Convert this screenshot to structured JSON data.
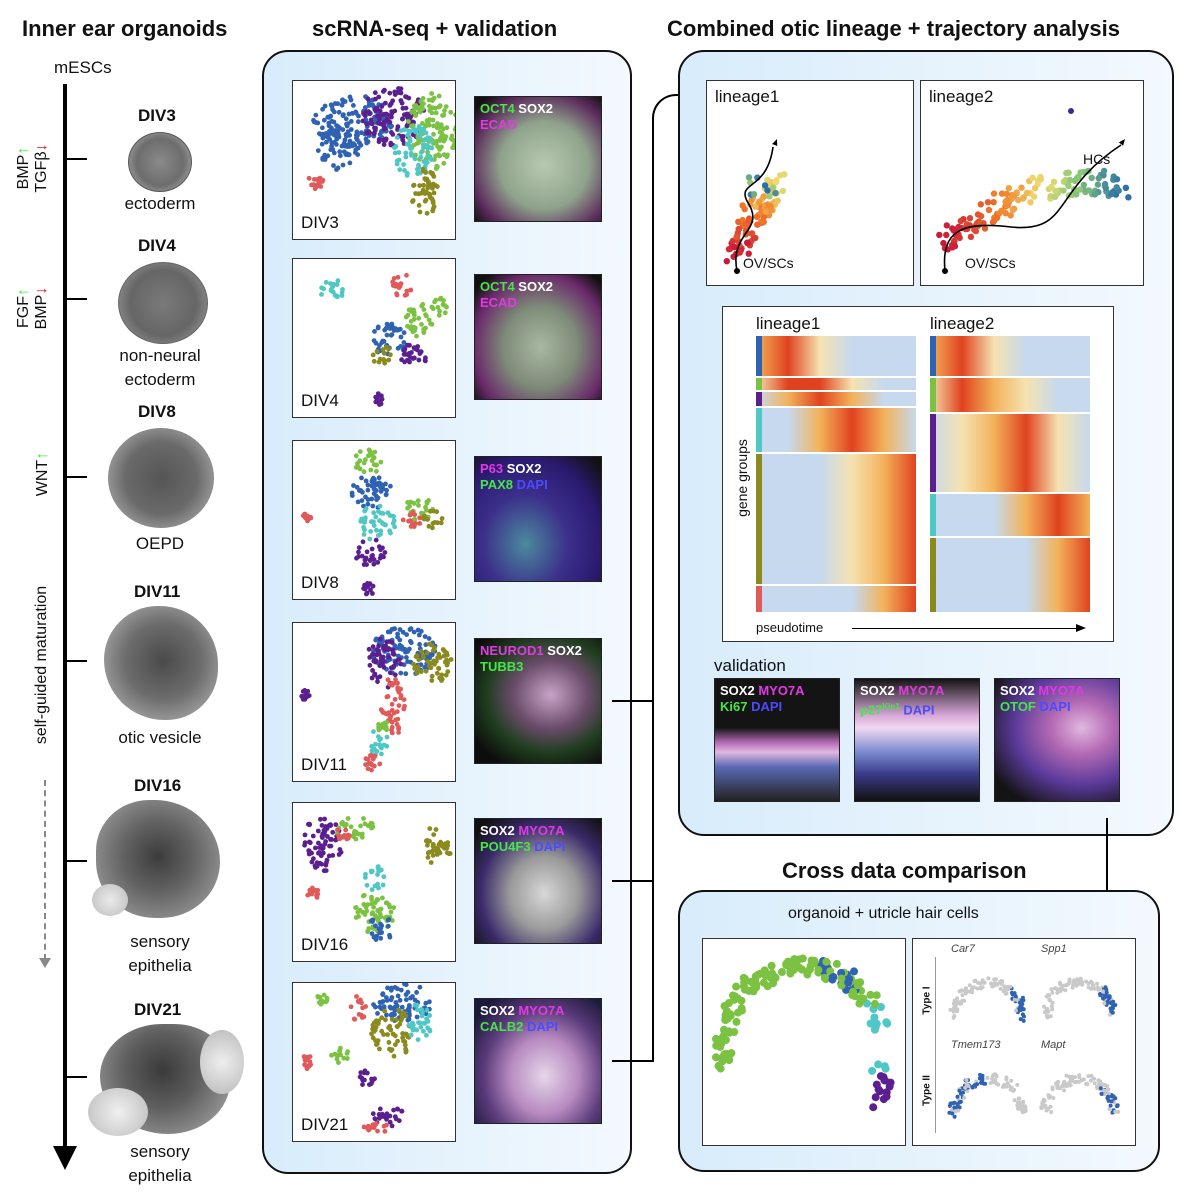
{
  "titles": {
    "col1": "Inner ear organoids",
    "col2": "scRNA-seq + validation",
    "col3": "Combined otic lineage + trajectory analysis",
    "cross": "Cross data comparison"
  },
  "timeline": {
    "start": "mESCs",
    "factors1_a": "BMP",
    "factors1_b": "TGFβ",
    "factors2_a": "FGF",
    "factors2_b": "BMP",
    "factors3": "WNT",
    "maturation": "self-guided maturation",
    "up": "↑",
    "down": "↓"
  },
  "stages": [
    {
      "div": "DIV3",
      "label1": "ectoderm",
      "label2": ""
    },
    {
      "div": "DIV4",
      "label1": "non-neural",
      "label2": "ectoderm"
    },
    {
      "div": "DIV8",
      "label1": "OEPD",
      "label2": ""
    },
    {
      "div": "DIV11",
      "label1": "otic vesicle",
      "label2": ""
    },
    {
      "div": "DIV16",
      "label1": "sensory",
      "label2": "epithelia"
    },
    {
      "div": "DIV21",
      "label1": "sensory",
      "label2": "epithelia"
    }
  ],
  "umaps": [
    "DIV3",
    "DIV4",
    "DIV8",
    "DIV11",
    "DIV16",
    "DIV21"
  ],
  "stains": [
    {
      "l1": [
        [
          "OCT4",
          "g"
        ],
        [
          "SOX2",
          "w"
        ]
      ],
      "l2": [
        [
          "ECAD",
          "m"
        ]
      ]
    },
    {
      "l1": [
        [
          "OCT4",
          "g"
        ],
        [
          "SOX2",
          "w"
        ]
      ],
      "l2": [
        [
          "ECAD",
          "m"
        ]
      ]
    },
    {
      "l1": [
        [
          "P63",
          "m"
        ],
        [
          "SOX2",
          "w"
        ]
      ],
      "l2": [
        [
          "PAX8",
          "g"
        ],
        [
          "DAPI",
          "b"
        ]
      ]
    },
    {
      "l1": [
        [
          "NEUROD1",
          "m"
        ],
        [
          "SOX2",
          "w"
        ]
      ],
      "l2": [
        [
          "TUBB3",
          "g"
        ]
      ]
    },
    {
      "l1": [
        [
          "SOX2",
          "w"
        ],
        [
          "MYO7A",
          "m"
        ]
      ],
      "l2": [
        [
          "POU4F3",
          "g"
        ],
        [
          "DAPI",
          "b"
        ]
      ]
    },
    {
      "l1": [
        [
          "SOX2",
          "w"
        ],
        [
          "MYO7A",
          "m"
        ]
      ],
      "l2": [
        [
          "CALB2",
          "g"
        ],
        [
          "DAPI",
          "b"
        ]
      ]
    }
  ],
  "trajectory": {
    "lineage1": "lineage1",
    "lineage2": "lineage2",
    "ov1": "OV/SCs",
    "ov2": "OV/SCs",
    "hcs": "HCs"
  },
  "heatmap": {
    "lineage1": "lineage1",
    "lineage2": "lineage2",
    "ylabel": "gene groups",
    "xlabel": "pseudotime"
  },
  "validation": {
    "title": "validation",
    "panels": [
      {
        "l1": [
          [
            "SOX2",
            "w"
          ],
          [
            "MYO7A",
            "m"
          ]
        ],
        "l2": [
          [
            "Ki67",
            "g"
          ],
          [
            "DAPI",
            "b"
          ]
        ]
      },
      {
        "l1": [
          [
            "SOX2",
            "w"
          ],
          [
            "MYO7A",
            "m"
          ]
        ],
        "l2": [
          [
            "p27",
            "g"
          ],
          [
            "Kip1",
            "g"
          ],
          [
            "DAPI",
            "b"
          ]
        ]
      },
      {
        "l1": [
          [
            "SOX2",
            "w"
          ],
          [
            "MYO7A",
            "m"
          ]
        ],
        "l2": [
          [
            "OTOF",
            "g"
          ],
          [
            "DAPI",
            "b"
          ]
        ]
      }
    ]
  },
  "cross": {
    "subtitle": "organoid + utricle hair cells",
    "genes": [
      "Car7",
      "Spp1",
      "Tmem173",
      "Mapt"
    ],
    "type1": "Type I",
    "type2": "Type II"
  },
  "colors": {
    "panel_border": "#111111",
    "panel_bg_left": "#d8ecfb",
    "panel_bg_right": "#f3f9fe",
    "cluster_blue": "#2f62b3",
    "cluster_purple": "#5b1f8f",
    "cluster_green": "#7cc242",
    "cluster_cyan": "#4ec7c5",
    "cluster_olive": "#8a8a1e",
    "cluster_red": "#e05a5a",
    "heat_high": "#d8341e",
    "heat_low": "#4a7cc0"
  }
}
